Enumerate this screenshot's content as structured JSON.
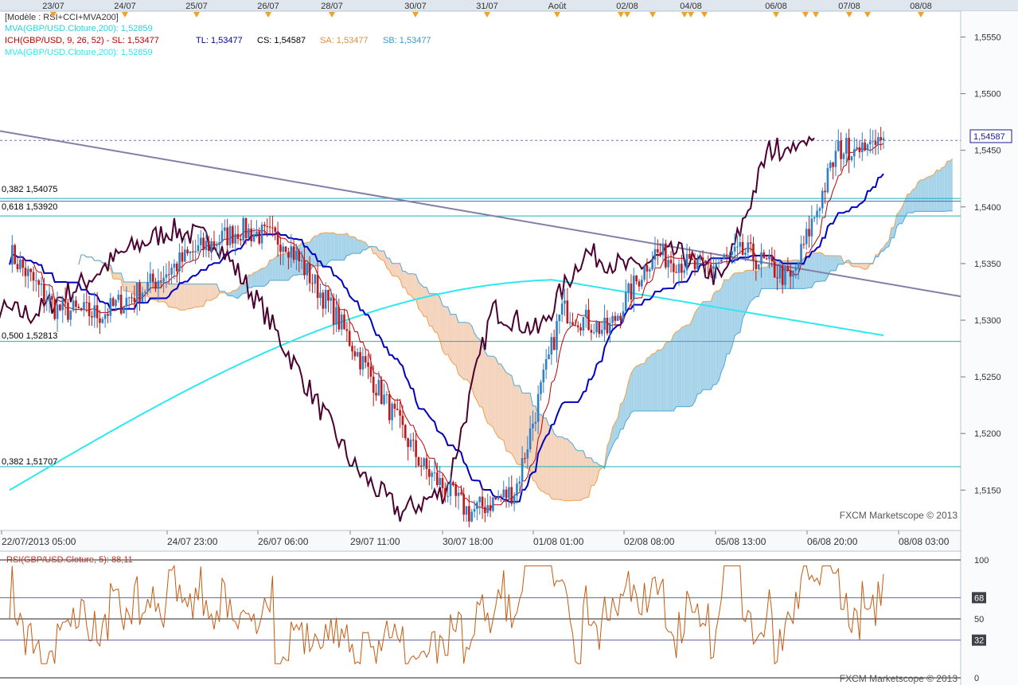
{
  "header": {
    "date_flags": [
      "23/07",
      "24/07",
      "25/07",
      "26/07",
      "28/07",
      "30/07",
      "31/07",
      "Août",
      "02/08",
      "04/08",
      "06/08",
      "07/08",
      "08/08"
    ]
  },
  "legend": {
    "template": "[Modèle : RSI+CCI+MVA200]",
    "mva_top": "MVA(GBP/USD.Cloture,200): 1,52859",
    "ich_label": "ICH(GBP/USD, 9, 26, 52) -  SL: 1,53477",
    "tl": "TL: 1,53477",
    "cs": "CS: 1,54587",
    "sa": "SA: 1,53477",
    "sb": "SB: 1,53477",
    "mva_bottom": "MVA(GBP/USD.Cloture,200): 1,52859"
  },
  "levels": {
    "fib_0382_top": "0,382 1,54075",
    "fib_0618": "0,618 1,53920",
    "fib_0500": "0,500 1,52813",
    "fib_0382_low": "0,382 1,51707"
  },
  "price_axis": {
    "ticks": [
      "1,5550",
      "1,5500",
      "1,5450",
      "1,5400",
      "1,5350",
      "1,5300",
      "1,5250",
      "1,5200",
      "1,5150"
    ],
    "current_price": "1,54587"
  },
  "time_axis": {
    "labels": [
      "22/07/2013 05:00",
      "24/07 23:00",
      "26/07 06:00",
      "29/07 11:00",
      "30/07 18:00",
      "01/08 01:00",
      "02/08 08:00",
      "05/08 13:00",
      "06/08 20:00",
      "08/08 03:00"
    ]
  },
  "watermark": "FXCM Marketscope © 2013",
  "rsi": {
    "label": "RSI(GBP/USD.Cloture, 5): 88,11",
    "ticks": [
      "100",
      "68",
      "50",
      "32",
      "0"
    ]
  },
  "colors": {
    "background": "#ffffff",
    "frame": "#c8d2dc",
    "axis_text": "#333333",
    "candle_up": "#2f80c8",
    "candle_down": "#c01818",
    "tenkan": "#0000c0",
    "kijun": "#c00000",
    "chikou": "#4a0030",
    "mva200": "#2ee8f0",
    "cloud_bull": "#a8d4ea",
    "cloud_bear": "#f4d4bc",
    "senkou_a": "#f0a050",
    "senkou_b": "#4fa8d8",
    "trendline": "#8080a8",
    "fib_line": "#20b0b8",
    "rsi_line": "#c85a10",
    "flag": "#f0a030"
  },
  "chart_data": [
    {
      "type": "candlestick",
      "title": "GBP/USD",
      "ylim": [
        1.512,
        1.557
      ],
      "x_start": "22/07/2013 05:00",
      "x_end": "08/08/2013 03:00",
      "series": [
        {
          "name": "ICH(GBP/USD, 9, 26, 52) SL",
          "last": 1.53477
        },
        {
          "name": "TL",
          "last": 1.53477
        },
        {
          "name": "CS",
          "last": 1.54587
        },
        {
          "name": "SA",
          "last": 1.53477
        },
        {
          "name": "SB",
          "last": 1.53477
        },
        {
          "name": "MVA(GBP/USD.Cloture,200)",
          "last": 1.52859
        }
      ],
      "key_prices": [
        1.536,
        1.531,
        1.5305,
        1.533,
        1.536,
        1.538,
        1.537,
        1.531,
        1.524,
        1.517,
        1.513,
        1.515,
        1.531,
        1.529,
        1.536,
        1.5345,
        1.536,
        1.5335,
        1.545,
        1.5459
      ],
      "horizontal_levels": [
        1.54075,
        1.5392,
        1.52813,
        1.51707
      ],
      "current_price": 1.54587
    },
    {
      "type": "line",
      "title": "RSI(GBP/USD.Cloture, 5)",
      "ylim": [
        0,
        100
      ],
      "reference_levels": [
        32,
        50,
        68
      ],
      "last": 88.11
    }
  ]
}
